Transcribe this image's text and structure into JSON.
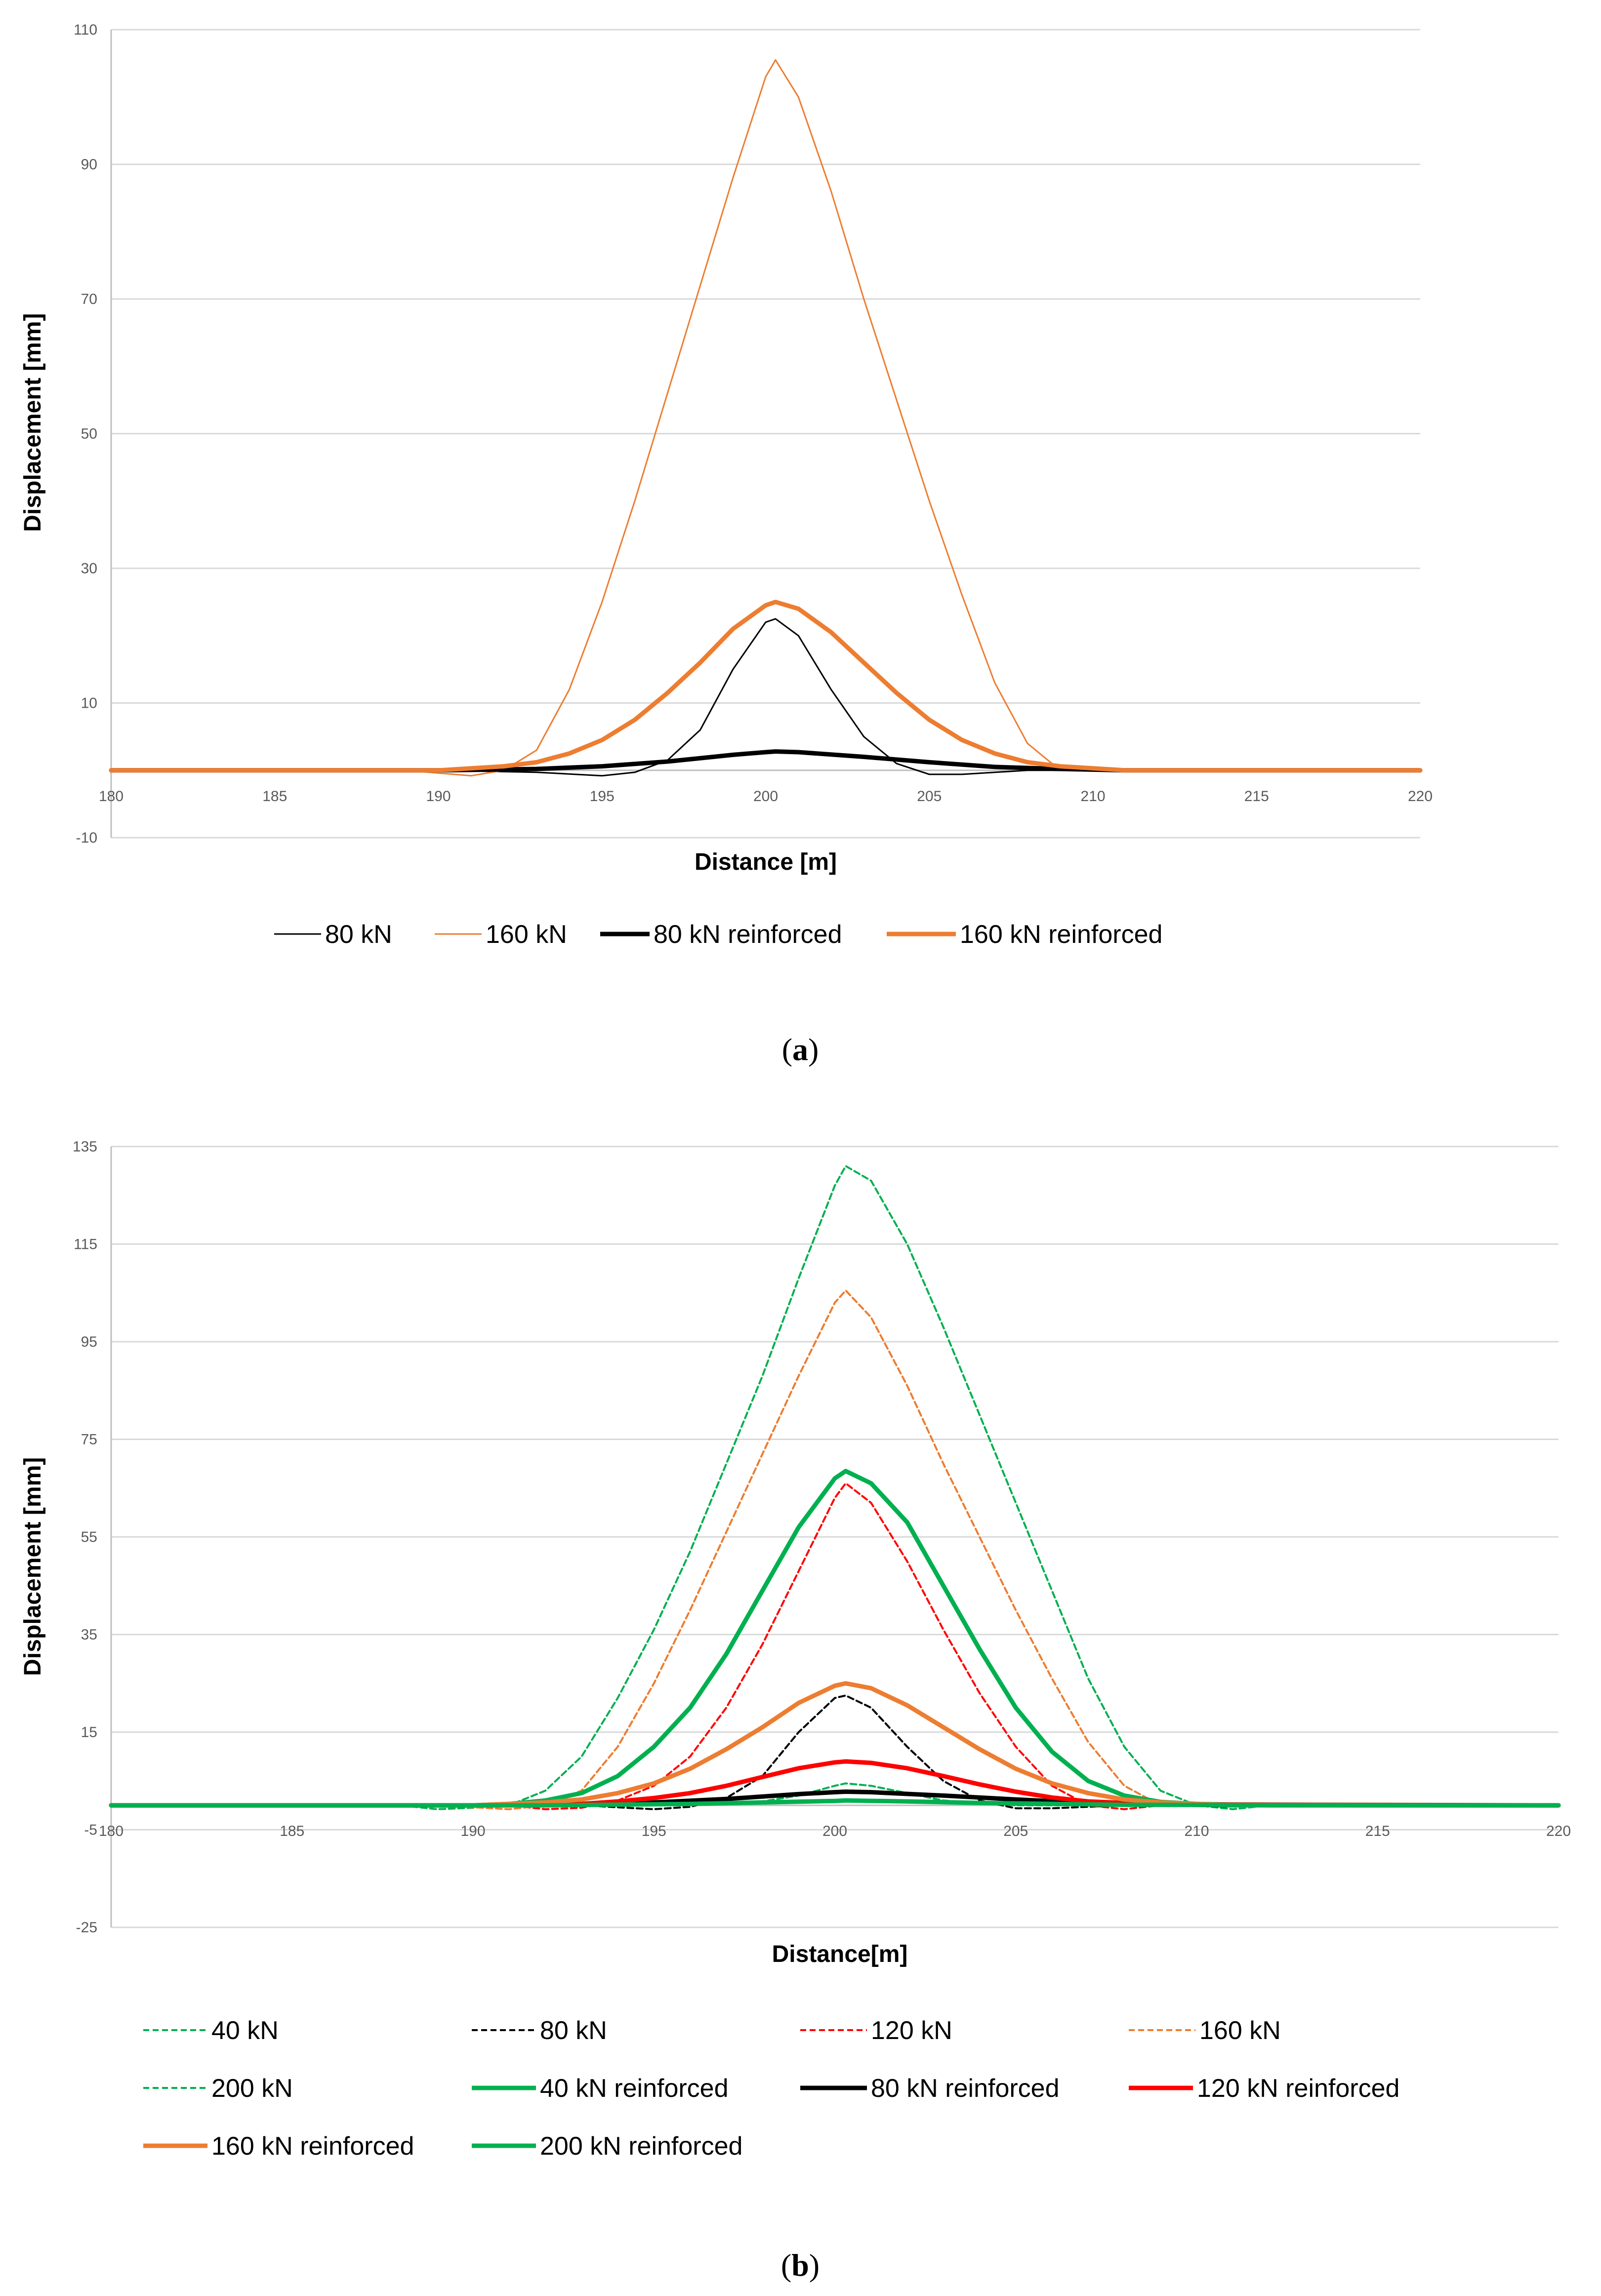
{
  "chart_data": [
    {
      "id": "a",
      "type": "line",
      "caption": "a",
      "xlabel": "Distance [m]",
      "ylabel": "Displacement [mm]",
      "xlim": [
        180,
        220
      ],
      "ylim": [
        -10,
        110
      ],
      "x_ticks": [
        180,
        185,
        190,
        195,
        200,
        205,
        210,
        215,
        220
      ],
      "y_ticks": [
        -10,
        10,
        30,
        50,
        70,
        90,
        110
      ],
      "series": [
        {
          "name": "80 kN",
          "color": "#000000",
          "style": "thin",
          "x": [
            180,
            190,
            193,
            195,
            196,
            197,
            198,
            199,
            200,
            200.3,
            201,
            202,
            203,
            204,
            205,
            206,
            208,
            210,
            220
          ],
          "y": [
            0,
            0,
            -0.3,
            -0.8,
            -0.3,
            1.5,
            6,
            15,
            22,
            22.5,
            20,
            12,
            5,
            1,
            -0.6,
            -0.6,
            0,
            0,
            0
          ]
        },
        {
          "name": "160 kN",
          "color": "#ed7d31",
          "style": "thin",
          "x": [
            180,
            189,
            191,
            192,
            193,
            194,
            195,
            196,
            197,
            198,
            199,
            200,
            200.3,
            201,
            202,
            203,
            204,
            205,
            206,
            207,
            208,
            209,
            210,
            220
          ],
          "y": [
            0,
            0,
            -0.8,
            0,
            3,
            12,
            25,
            40,
            56,
            72,
            88,
            103,
            105.5,
            100,
            86,
            70,
            55,
            40,
            26,
            13,
            4,
            0,
            0,
            0
          ]
        },
        {
          "name": "80 kN reinforced",
          "color": "#000000",
          "style": "thick",
          "x": [
            180,
            190,
            193,
            195,
            197,
            199,
            200,
            200.3,
            201,
            203,
            205,
            207,
            209,
            210,
            211,
            220
          ],
          "y": [
            0,
            0,
            0.2,
            0.6,
            1.3,
            2.3,
            2.7,
            2.8,
            2.7,
            2.0,
            1.2,
            0.5,
            0.2,
            0.1,
            0,
            0
          ]
        },
        {
          "name": "160 kN reinforced",
          "color": "#ed7d31",
          "style": "thick",
          "x": [
            180,
            190,
            192,
            193,
            194,
            195,
            196,
            197,
            198,
            199,
            200,
            200.3,
            201,
            202,
            203,
            204,
            205,
            206,
            207,
            208,
            209,
            211,
            220
          ],
          "y": [
            0,
            0,
            0.6,
            1.2,
            2.5,
            4.5,
            7.5,
            11.5,
            16,
            21,
            24.5,
            25,
            24,
            20.5,
            16,
            11.5,
            7.5,
            4.5,
            2.5,
            1.2,
            0.6,
            0,
            0
          ]
        }
      ]
    },
    {
      "id": "b",
      "type": "line",
      "caption": "b",
      "xlabel": "Distance[m]",
      "ylabel": "Displacement [mm]",
      "xlim": [
        180,
        220
      ],
      "ylim": [
        -25,
        135
      ],
      "x_ticks": [
        180,
        185,
        190,
        195,
        200,
        205,
        210,
        215,
        220
      ],
      "y_ticks": [
        -25,
        -5,
        15,
        35,
        55,
        75,
        95,
        115,
        135
      ],
      "series": [
        {
          "name": "40 kN",
          "color": "#00b050",
          "style": "dashed",
          "x": [
            180,
            188,
            189,
            190,
            191,
            192,
            193,
            194,
            195,
            196,
            197,
            198,
            199,
            200,
            200.3,
            201,
            202,
            203,
            204,
            205,
            206,
            207,
            208,
            209,
            210,
            211,
            212,
            220
          ],
          "y": [
            0,
            0,
            -0.8,
            -0.5,
            0,
            3,
            10,
            22,
            36,
            52,
            70,
            88,
            108,
            127,
            131,
            128,
            115,
            98,
            80,
            62,
            44,
            26,
            12,
            3,
            0,
            -0.8,
            0,
            0
          ]
        },
        {
          "name": "80 kN",
          "color": "#000000",
          "style": "dashed",
          "x": [
            180,
            193,
            195,
            196,
            197,
            198,
            199,
            200,
            200.3,
            201,
            202,
            203,
            204,
            205,
            206,
            208,
            220
          ],
          "y": [
            0,
            0,
            -0.8,
            -0.3,
            1.5,
            6,
            15,
            22,
            22.5,
            20,
            12,
            5,
            1,
            -0.6,
            -0.6,
            0,
            0
          ]
        },
        {
          "name": "120 kN",
          "color": "#ff0000",
          "style": "dashed",
          "x": [
            180,
            191,
            192,
            193,
            194,
            195,
            196,
            197,
            198,
            199,
            200,
            200.3,
            201,
            202,
            203,
            204,
            205,
            206,
            207,
            208,
            209,
            220
          ],
          "y": [
            0,
            0,
            -0.8,
            -0.5,
            1,
            4,
            10,
            20,
            33,
            48,
            63,
            66,
            62,
            50,
            36,
            23,
            12,
            4,
            0,
            -0.8,
            0,
            0
          ]
        },
        {
          "name": "160 kN",
          "color": "#ed7d31",
          "style": "dashed",
          "x": [
            180,
            189,
            191,
            192,
            193,
            194,
            195,
            196,
            197,
            198,
            199,
            200,
            200.3,
            201,
            202,
            203,
            204,
            205,
            206,
            207,
            208,
            209,
            210,
            220
          ],
          "y": [
            0,
            0,
            -0.8,
            0,
            3,
            12,
            25,
            40,
            56,
            72,
            88,
            103,
            105.5,
            100,
            86,
            70,
            55,
            40,
            26,
            13,
            4,
            0,
            0,
            0
          ]
        },
        {
          "name": "200 kN",
          "color": "#00b050",
          "style": "dashed",
          "x": [
            180,
            196,
            198,
            199,
            200,
            200.3,
            201,
            202,
            203,
            205,
            220
          ],
          "y": [
            0,
            0,
            0.8,
            2,
            4,
            4.5,
            4,
            2.5,
            1,
            0,
            0
          ]
        },
        {
          "name": "40 kN reinforced",
          "color": "#00b050",
          "style": "thick",
          "x": [
            180,
            188,
            190,
            191,
            192,
            193,
            194,
            195,
            196,
            197,
            198,
            199,
            200,
            200.3,
            201,
            202,
            203,
            204,
            205,
            206,
            207,
            208,
            209,
            210,
            212,
            220
          ],
          "y": [
            0,
            0,
            0,
            0.3,
            1,
            2.5,
            6,
            12,
            20,
            31,
            44,
            57,
            67,
            68.5,
            66,
            58,
            45,
            32,
            20,
            11,
            5,
            2,
            0.7,
            0.3,
            0,
            0
          ]
        },
        {
          "name": "80 kN reinforced",
          "color": "#000000",
          "style": "thick",
          "x": [
            180,
            190,
            193,
            195,
            197,
            199,
            200,
            200.3,
            201,
            203,
            205,
            207,
            209,
            211,
            220
          ],
          "y": [
            0,
            0,
            0.2,
            0.6,
            1.3,
            2.3,
            2.7,
            2.8,
            2.7,
            2.0,
            1.2,
            0.5,
            0.2,
            0,
            0
          ]
        },
        {
          "name": "120 kN reinforced",
          "color": "#ff0000",
          "style": "thick",
          "x": [
            180,
            191,
            193,
            194,
            195,
            196,
            197,
            198,
            199,
            200,
            200.3,
            201,
            202,
            203,
            204,
            205,
            206,
            207,
            209,
            220
          ],
          "y": [
            0,
            0,
            0.3,
            0.8,
            1.5,
            2.5,
            4,
            5.8,
            7.6,
            8.8,
            9,
            8.7,
            7.6,
            6,
            4.3,
            2.8,
            1.6,
            0.8,
            0.2,
            0
          ]
        },
        {
          "name": "160 kN reinforced",
          "color": "#ed7d31",
          "style": "thick",
          "x": [
            180,
            190,
            192,
            193,
            194,
            195,
            196,
            197,
            198,
            199,
            200,
            200.3,
            201,
            202,
            203,
            204,
            205,
            206,
            207,
            208,
            209,
            211,
            220
          ],
          "y": [
            0,
            0,
            0.6,
            1.2,
            2.5,
            4.5,
            7.5,
            11.5,
            16,
            21,
            24.5,
            25,
            24,
            20.5,
            16,
            11.5,
            7.5,
            4.5,
            2.5,
            1.2,
            0.6,
            0,
            0
          ]
        },
        {
          "name": "200 kN reinforced",
          "color": "#00b050",
          "style": "thick",
          "x": [
            180,
            192,
            196,
            198,
            200,
            200.3,
            202,
            204,
            208,
            220
          ],
          "y": [
            0,
            0,
            0.3,
            0.6,
            0.9,
            1,
            0.8,
            0.5,
            0.1,
            0
          ]
        }
      ]
    }
  ],
  "colors": {
    "black": "#000000",
    "orange": "#ed7d31",
    "red": "#ff0000",
    "green": "#00b050",
    "grid": "#d9d9d9",
    "axis": "#bfbfbf"
  }
}
